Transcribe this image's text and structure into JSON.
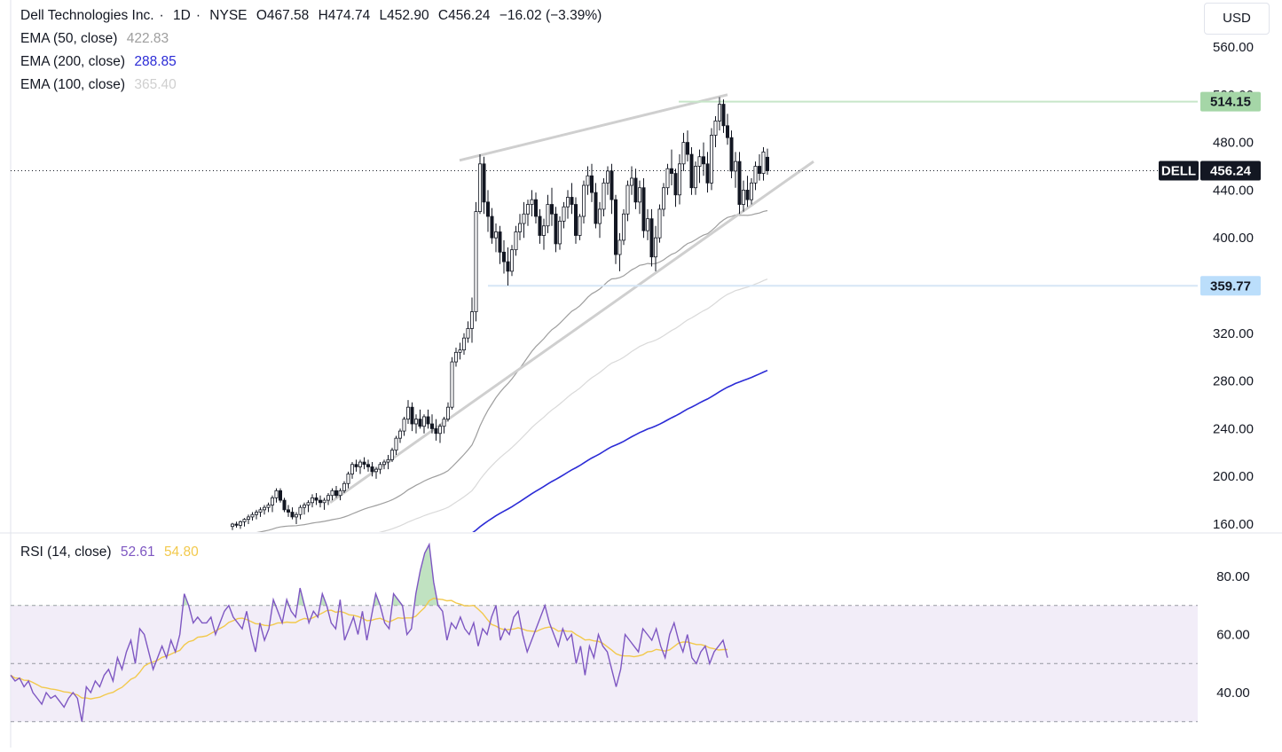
{
  "header": {
    "symbol_name": "Dell Technologies Inc.",
    "interval": "1D",
    "exchange": "NYSE",
    "open_label": "O467.58",
    "high_label": "H474.74",
    "low_label": "L452.90",
    "close_label": "C456.24",
    "change_label": "−16.02 (−3.39%)",
    "currency": "USD"
  },
  "indicators": {
    "ema50": {
      "label": "EMA (50, close)",
      "value": "422.83",
      "color": "#9e9e9e"
    },
    "ema200": {
      "label": "EMA (200, close)",
      "value": "288.85",
      "color": "#2b2bd6"
    },
    "ema100": {
      "label": "EMA (100, close)",
      "value": "365.40",
      "color": "#d6d6d6"
    },
    "rsi": {
      "label": "RSI (14, close)",
      "value": "52.61",
      "ma_value": "54.80",
      "color": "#7e57c2",
      "ma_color": "#f2c94c"
    }
  },
  "price_labels": {
    "ticker": "DELL",
    "last": "456.24",
    "resistance": "514.15",
    "support": "359.77",
    "resistance_bg": "#a5d6a7",
    "support_bg": "#bbdefb"
  },
  "chart_data": [
    {
      "type": "candlestick",
      "title": "Dell Technologies Inc. · 1D · NYSE",
      "y_ticks": [
        "160.00",
        "200.00",
        "240.00",
        "280.00",
        "320.00",
        "360.00",
        "400.00",
        "440.00",
        "480.00",
        "520.00",
        "560.00"
      ],
      "ylim": [
        158,
        600
      ],
      "last_close": 456.24,
      "horizontal_levels": [
        514.15,
        359.77
      ],
      "series": [
        {
          "name": "EMA (50, close)",
          "last": 422.83
        },
        {
          "name": "EMA (200, close)",
          "last": 288.85
        },
        {
          "name": "EMA (100, close)",
          "last": 365.4
        }
      ],
      "candles": [
        [
          158,
          161,
          155,
          160
        ],
        [
          160,
          162,
          157,
          159
        ],
        [
          159,
          163,
          156,
          162
        ],
        [
          162,
          165,
          158,
          164
        ],
        [
          164,
          168,
          160,
          166
        ],
        [
          166,
          170,
          163,
          168
        ],
        [
          168,
          172,
          164,
          170
        ],
        [
          170,
          174,
          166,
          172
        ],
        [
          172,
          176,
          168,
          174
        ],
        [
          174,
          178,
          170,
          176
        ],
        [
          176,
          184,
          170,
          182
        ],
        [
          182,
          190,
          178,
          188
        ],
        [
          188,
          190,
          178,
          180
        ],
        [
          180,
          182,
          170,
          172
        ],
        [
          172,
          176,
          166,
          170
        ],
        [
          170,
          174,
          164,
          166
        ],
        [
          166,
          170,
          160,
          168
        ],
        [
          168,
          176,
          164,
          174
        ],
        [
          174,
          178,
          168,
          176
        ],
        [
          176,
          180,
          170,
          178
        ],
        [
          178,
          185,
          174,
          182
        ],
        [
          182,
          186,
          176,
          180
        ],
        [
          180,
          184,
          174,
          178
        ],
        [
          178,
          182,
          172,
          180
        ],
        [
          180,
          186,
          176,
          184
        ],
        [
          184,
          190,
          180,
          188
        ],
        [
          188,
          192,
          182,
          184
        ],
        [
          184,
          190,
          180,
          188
        ],
        [
          188,
          196,
          186,
          194
        ],
        [
          194,
          204,
          190,
          202
        ],
        [
          202,
          212,
          198,
          210
        ],
        [
          210,
          214,
          204,
          208
        ],
        [
          208,
          214,
          202,
          212
        ],
        [
          212,
          216,
          206,
          210
        ],
        [
          210,
          214,
          204,
          208
        ],
        [
          208,
          212,
          200,
          204
        ],
        [
          204,
          208,
          198,
          206
        ],
        [
          206,
          212,
          202,
          210
        ],
        [
          210,
          214,
          206,
          212
        ],
        [
          212,
          218,
          206,
          214
        ],
        [
          214,
          224,
          212,
          222
        ],
        [
          222,
          234,
          218,
          232
        ],
        [
          232,
          240,
          228,
          238
        ],
        [
          238,
          250,
          234,
          248
        ],
        [
          248,
          264,
          244,
          258
        ],
        [
          258,
          262,
          238,
          244
        ],
        [
          244,
          252,
          236,
          248
        ],
        [
          248,
          256,
          240,
          242
        ],
        [
          242,
          252,
          236,
          250
        ],
        [
          250,
          256,
          240,
          244
        ],
        [
          244,
          252,
          236,
          240
        ],
        [
          240,
          248,
          230,
          236
        ],
        [
          236,
          244,
          228,
          242
        ],
        [
          242,
          250,
          236,
          248
        ],
        [
          248,
          262,
          246,
          258
        ],
        [
          258,
          300,
          256,
          296
        ],
        [
          296,
          308,
          292,
          304
        ],
        [
          304,
          312,
          298,
          306
        ],
        [
          306,
          320,
          302,
          316
        ],
        [
          316,
          330,
          312,
          324
        ],
        [
          324,
          350,
          312,
          338
        ],
        [
          338,
          430,
          330,
          422
        ],
        [
          422,
          470,
          420,
          462
        ],
        [
          462,
          468,
          420,
          430
        ],
        [
          430,
          440,
          405,
          418
        ],
        [
          418,
          425,
          395,
          400
        ],
        [
          400,
          412,
          388,
          405
        ],
        [
          405,
          410,
          378,
          388
        ],
        [
          388,
          398,
          370,
          380
        ],
        [
          380,
          392,
          360,
          372
        ],
        [
          372,
          394,
          368,
          390
        ],
        [
          390,
          410,
          385,
          405
        ],
        [
          405,
          420,
          398,
          412
        ],
        [
          412,
          430,
          400,
          420
        ],
        [
          420,
          432,
          410,
          428
        ],
        [
          428,
          440,
          418,
          432
        ],
        [
          432,
          438,
          412,
          418
        ],
        [
          418,
          424,
          395,
          402
        ],
        [
          402,
          416,
          390,
          410
        ],
        [
          410,
          436,
          404,
          428
        ],
        [
          428,
          442,
          410,
          420
        ],
        [
          420,
          426,
          388,
          395
        ],
        [
          395,
          418,
          390,
          414
        ],
        [
          414,
          430,
          408,
          426
        ],
        [
          426,
          440,
          416,
          434
        ],
        [
          434,
          446,
          420,
          428
        ],
        [
          428,
          434,
          395,
          402
        ],
        [
          402,
          420,
          398,
          418
        ],
        [
          418,
          448,
          412,
          444
        ],
        [
          444,
          460,
          436,
          452
        ],
        [
          452,
          462,
          430,
          438
        ],
        [
          438,
          446,
          408,
          412
        ],
        [
          412,
          430,
          400,
          424
        ],
        [
          424,
          450,
          418,
          446
        ],
        [
          446,
          460,
          436,
          456
        ],
        [
          456,
          462,
          420,
          432
        ],
        [
          432,
          436,
          378,
          386
        ],
        [
          386,
          404,
          372,
          398
        ],
        [
          398,
          424,
          394,
          420
        ],
        [
          420,
          448,
          414,
          444
        ],
        [
          444,
          460,
          436,
          450
        ],
        [
          450,
          458,
          424,
          430
        ],
        [
          430,
          448,
          420,
          442
        ],
        [
          442,
          450,
          400,
          406
        ],
        [
          406,
          424,
          398,
          416
        ],
        [
          416,
          424,
          376,
          384
        ],
        [
          384,
          410,
          372,
          400
        ],
        [
          400,
          428,
          396,
          424
        ],
        [
          424,
          446,
          418,
          442
        ],
        [
          442,
          462,
          436,
          458
        ],
        [
          458,
          474,
          444,
          454
        ],
        [
          454,
          458,
          426,
          436
        ],
        [
          436,
          470,
          428,
          462
        ],
        [
          462,
          488,
          456,
          480
        ],
        [
          480,
          490,
          464,
          470
        ],
        [
          470,
          476,
          436,
          442
        ],
        [
          442,
          464,
          436,
          460
        ],
        [
          460,
          474,
          446,
          468
        ],
        [
          468,
          480,
          452,
          462
        ],
        [
          462,
          472,
          438,
          446
        ],
        [
          446,
          492,
          440,
          486
        ],
        [
          486,
          502,
          476,
          498
        ],
        [
          498,
          518,
          490,
          512
        ],
        [
          512,
          516,
          488,
          494
        ],
        [
          494,
          504,
          478,
          484
        ],
        [
          484,
          490,
          450,
          456
        ],
        [
          456,
          472,
          442,
          464
        ],
        [
          464,
          472,
          420,
          428
        ],
        [
          428,
          448,
          422,
          440
        ],
        [
          440,
          452,
          426,
          432
        ],
        [
          432,
          450,
          428,
          446
        ],
        [
          446,
          464,
          440,
          460
        ],
        [
          460,
          470,
          448,
          454
        ],
        [
          454,
          476,
          448,
          472
        ],
        [
          467.58,
          474.74,
          452.9,
          456.24
        ]
      ]
    },
    {
      "type": "line",
      "title": "RSI (14, close)",
      "y_ticks": [
        "40.00",
        "60.00",
        "80.00"
      ],
      "ylim": [
        26,
        94
      ],
      "bands": [
        30,
        50,
        70
      ],
      "series": [
        {
          "name": "RSI (14, close)",
          "last": 52.61,
          "values": [
            46,
            44,
            45,
            42,
            44,
            40,
            38,
            36,
            40,
            38,
            39,
            37,
            35,
            38,
            40,
            38,
            30,
            42,
            40,
            44,
            42,
            46,
            48,
            44,
            52,
            48,
            54,
            58,
            50,
            62,
            60,
            54,
            48,
            52,
            56,
            52,
            58,
            54,
            60,
            74,
            70,
            64,
            66,
            64,
            64,
            66,
            60,
            64,
            68,
            70,
            66,
            64,
            62,
            68,
            60,
            54,
            64,
            58,
            62,
            72,
            68,
            64,
            72,
            68,
            66,
            76,
            70,
            64,
            68,
            66,
            74,
            70,
            64,
            62,
            72,
            58,
            62,
            66,
            60,
            68,
            58,
            66,
            74,
            70,
            64,
            62,
            74,
            72,
            70,
            60,
            62,
            74,
            82,
            88,
            91,
            78,
            70,
            68,
            58,
            64,
            62,
            66,
            62,
            60,
            64,
            56,
            62,
            60,
            66,
            70,
            58,
            62,
            60,
            66,
            68,
            60,
            54,
            58,
            62,
            66,
            70,
            64,
            60,
            56,
            62,
            58,
            60,
            50,
            56,
            46,
            56,
            52,
            60,
            56,
            54,
            48,
            42,
            48,
            60,
            58,
            56,
            54,
            62,
            60,
            58,
            62,
            56,
            52,
            60,
            64,
            58,
            54,
            60,
            52,
            50,
            54,
            56,
            50,
            54,
            56,
            58,
            52
          ]
        },
        {
          "name": "RSI-based MA",
          "last": 54.8
        }
      ]
    }
  ]
}
